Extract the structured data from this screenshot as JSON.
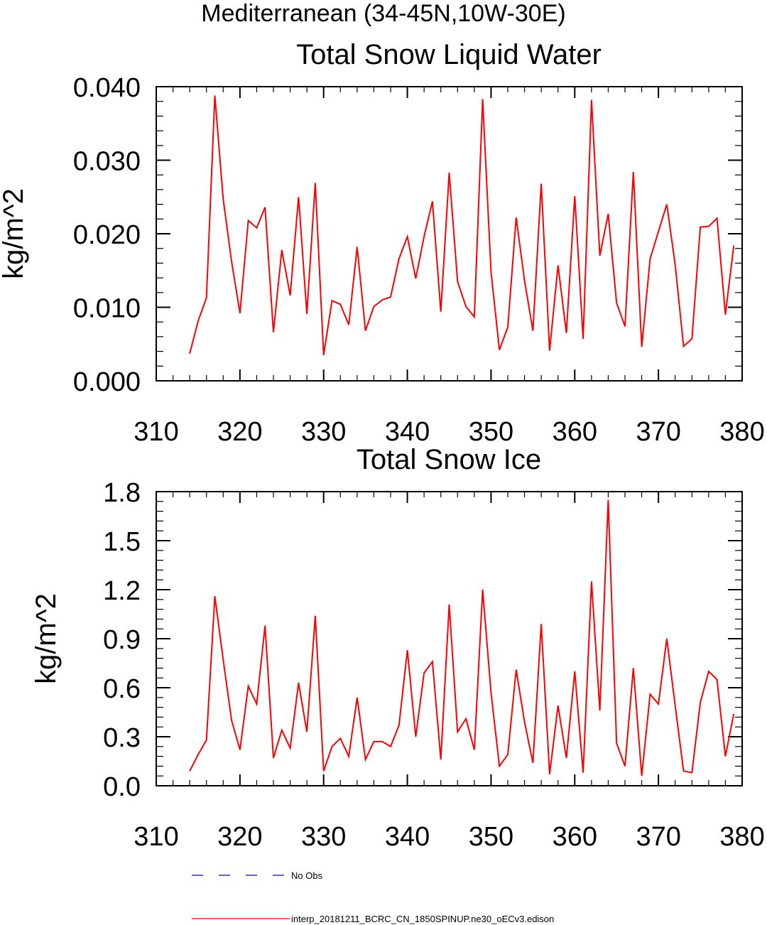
{
  "figure": {
    "title": "Mediterranean (34-45N,10W-30E)"
  },
  "chart_data": [
    {
      "type": "line",
      "title": "Total Snow Liquid Water",
      "xlabel": "",
      "ylabel": "kg/m^2",
      "xlim": [
        310,
        380
      ],
      "ylim": [
        0,
        0.04
      ],
      "x_ticks": [
        "310",
        "320",
        "330",
        "340",
        "350",
        "360",
        "370",
        "380"
      ],
      "y_ticks": [
        "0.000",
        "0.010",
        "0.020",
        "0.030",
        "0.040"
      ],
      "x_tick_values": [
        310,
        320,
        330,
        340,
        350,
        360,
        370,
        380
      ],
      "y_tick_values": [
        0,
        0.01,
        0.02,
        0.03,
        0.04
      ],
      "grid": false,
      "series": [
        {
          "color": "#ff0000",
          "x": [
            314,
            315,
            316,
            317,
            318,
            319,
            320,
            321,
            322,
            323,
            324,
            325,
            326,
            327,
            328,
            329,
            330,
            331,
            332,
            333,
            334,
            335,
            336,
            337,
            338,
            339,
            340,
            341,
            342,
            343,
            344,
            345,
            346,
            347,
            348,
            349,
            350,
            351,
            352,
            353,
            354,
            355,
            356,
            357,
            358,
            359,
            360,
            361,
            362,
            363,
            364,
            365,
            366,
            367,
            368,
            369,
            370,
            371,
            372,
            373,
            374,
            375,
            376,
            377,
            378,
            379
          ],
          "values": [
            0.0037,
            0.0081,
            0.0113,
            0.0388,
            0.0247,
            0.0162,
            0.0092,
            0.0218,
            0.0208,
            0.0236,
            0.0066,
            0.0178,
            0.0116,
            0.025,
            0.0091,
            0.0269,
            0.0035,
            0.0109,
            0.0104,
            0.0076,
            0.0182,
            0.0068,
            0.0101,
            0.011,
            0.0114,
            0.0166,
            0.0196,
            0.0139,
            0.0196,
            0.0244,
            0.0094,
            0.0283,
            0.0135,
            0.0101,
            0.0087,
            0.0383,
            0.0148,
            0.0042,
            0.0073,
            0.0222,
            0.0136,
            0.0068,
            0.0268,
            0.0041,
            0.0157,
            0.0065,
            0.0251,
            0.0057,
            0.0382,
            0.017,
            0.0227,
            0.0106,
            0.0074,
            0.0284,
            0.0046,
            0.0166,
            0.0203,
            0.024,
            0.0158,
            0.0047,
            0.0057,
            0.0209,
            0.021,
            0.0221,
            0.009,
            0.0184
          ]
        }
      ]
    },
    {
      "type": "line",
      "title": "Total Snow Ice",
      "xlabel": "",
      "ylabel": "kg/m^2",
      "xlim": [
        310,
        380
      ],
      "ylim": [
        0,
        1.8
      ],
      "x_ticks": [
        "310",
        "320",
        "330",
        "340",
        "350",
        "360",
        "370",
        "380"
      ],
      "y_ticks": [
        "0.0",
        "0.3",
        "0.6",
        "0.9",
        "1.2",
        "1.5",
        "1.8"
      ],
      "x_tick_values": [
        310,
        320,
        330,
        340,
        350,
        360,
        370,
        380
      ],
      "y_tick_values": [
        0,
        0.3,
        0.6,
        0.9,
        1.2,
        1.5,
        1.8
      ],
      "grid": false,
      "series": [
        {
          "color": "#ff0000",
          "x": [
            314,
            315,
            316,
            317,
            318,
            319,
            320,
            321,
            322,
            323,
            324,
            325,
            326,
            327,
            328,
            329,
            330,
            331,
            332,
            333,
            334,
            335,
            336,
            337,
            338,
            339,
            340,
            341,
            342,
            343,
            344,
            345,
            346,
            347,
            348,
            349,
            350,
            351,
            352,
            353,
            354,
            355,
            356,
            357,
            358,
            359,
            360,
            361,
            362,
            363,
            364,
            365,
            366,
            367,
            368,
            369,
            370,
            371,
            372,
            373,
            374,
            375,
            376,
            377,
            378,
            379
          ],
          "values": [
            0.09,
            0.19,
            0.28,
            1.16,
            0.77,
            0.4,
            0.22,
            0.61,
            0.5,
            0.98,
            0.17,
            0.34,
            0.23,
            0.63,
            0.33,
            1.04,
            0.09,
            0.24,
            0.29,
            0.18,
            0.54,
            0.16,
            0.27,
            0.27,
            0.24,
            0.37,
            0.83,
            0.3,
            0.69,
            0.76,
            0.16,
            1.11,
            0.33,
            0.41,
            0.22,
            1.2,
            0.57,
            0.12,
            0.19,
            0.71,
            0.39,
            0.14,
            0.99,
            0.07,
            0.49,
            0.17,
            0.7,
            0.08,
            1.25,
            0.46,
            1.75,
            0.26,
            0.12,
            0.72,
            0.06,
            0.56,
            0.5,
            0.9,
            0.49,
            0.09,
            0.08,
            0.51,
            0.7,
            0.65,
            0.18,
            0.44
          ]
        }
      ]
    }
  ],
  "legend": {
    "placement": "bottom",
    "items": [
      {
        "label": "No Obs",
        "color": "#0000ff",
        "style": "dashed"
      },
      {
        "label": "interp_20181211_BCRC_CN_1850SPINUP.ne30_oECv3.edison",
        "color": "#ff0000",
        "style": "solid"
      }
    ]
  }
}
